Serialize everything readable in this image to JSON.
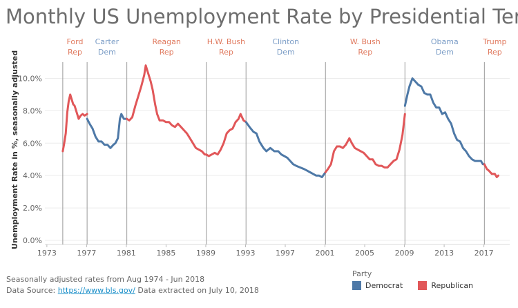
{
  "title": "Monthly US Unemployment Rate by Presidential Term",
  "footer": {
    "line1": "Seasonally adjusted rates from Aug 1974 - Jun 2018",
    "line2_prefix": "Data Source: ",
    "link": "https://www.bls.gov/",
    "line2_suffix": " Data extracted on July 10, 2018"
  },
  "legend": {
    "title": "Party",
    "items": [
      {
        "label": "Democrat",
        "color": "#4e79a7"
      },
      {
        "label": "Republican",
        "color": "#e15759"
      }
    ]
  },
  "colors": {
    "Rep": "#e15759",
    "Dem": "#4e79a7",
    "repLabel": "#e07a5f",
    "demLabel": "#7a9cc6"
  },
  "chart_data": {
    "type": "line",
    "title": "Monthly US Unemployment Rate by Presidential Term",
    "ylabel": "Unemployment Rate in %, seasonally adjusted",
    "xlabel": "",
    "xlim": [
      1972.8,
      2019.6
    ],
    "ylim": [
      0,
      11
    ],
    "yticks": [
      0,
      2,
      4,
      6,
      8,
      10
    ],
    "ytick_labels": [
      "0.0%",
      "2.0%",
      "4.0%",
      "6.0%",
      "8.0%",
      "10.0%"
    ],
    "xticks": [
      1973,
      1977,
      1981,
      1985,
      1989,
      1993,
      1997,
      2001,
      2005,
      2009,
      2013,
      2017
    ],
    "grid": true,
    "legend_position": "bottom-right",
    "terms": [
      {
        "name": "Ford",
        "party": "Rep",
        "start": 1974.6
      },
      {
        "name": "Carter",
        "party": "Dem",
        "start": 1977.05
      },
      {
        "name": "Reagan",
        "party": "Rep",
        "start": 1981.05
      },
      {
        "name": "H.W. Bush",
        "party": "Rep",
        "start": 1989.05
      },
      {
        "name": "Clinton",
        "party": "Dem",
        "start": 1993.05
      },
      {
        "name": "W. Bush",
        "party": "Rep",
        "start": 2001.05
      },
      {
        "name": "Obama",
        "party": "Dem",
        "start": 2009.05
      },
      {
        "name": "Trump",
        "party": "Rep",
        "start": 2017.05
      }
    ],
    "series": [
      {
        "name": "Ford",
        "party": "Rep",
        "points": [
          [
            1974.6,
            5.5
          ],
          [
            1974.75,
            6.0
          ],
          [
            1974.9,
            6.6
          ],
          [
            1975.05,
            7.9
          ],
          [
            1975.2,
            8.6
          ],
          [
            1975.35,
            9.0
          ],
          [
            1975.5,
            8.7
          ],
          [
            1975.65,
            8.4
          ],
          [
            1975.8,
            8.3
          ],
          [
            1976.0,
            7.9
          ],
          [
            1976.2,
            7.5
          ],
          [
            1976.4,
            7.7
          ],
          [
            1976.6,
            7.8
          ],
          [
            1976.8,
            7.7
          ],
          [
            1977.05,
            7.8
          ]
        ]
      },
      {
        "name": "Carter",
        "party": "Dem",
        "points": [
          [
            1977.05,
            7.5
          ],
          [
            1977.3,
            7.2
          ],
          [
            1977.6,
            6.9
          ],
          [
            1977.9,
            6.4
          ],
          [
            1978.2,
            6.1
          ],
          [
            1978.5,
            6.1
          ],
          [
            1978.8,
            5.9
          ],
          [
            1979.1,
            5.9
          ],
          [
            1979.4,
            5.7
          ],
          [
            1979.7,
            5.9
          ],
          [
            1979.9,
            6.0
          ],
          [
            1980.15,
            6.3
          ],
          [
            1980.35,
            7.5
          ],
          [
            1980.5,
            7.8
          ],
          [
            1980.75,
            7.5
          ],
          [
            1981.05,
            7.5
          ]
        ]
      },
      {
        "name": "Reagan",
        "party": "Rep",
        "points": [
          [
            1981.05,
            7.5
          ],
          [
            1981.3,
            7.4
          ],
          [
            1981.6,
            7.6
          ],
          [
            1981.9,
            8.3
          ],
          [
            1982.2,
            8.9
          ],
          [
            1982.5,
            9.5
          ],
          [
            1982.8,
            10.2
          ],
          [
            1982.95,
            10.8
          ],
          [
            1983.2,
            10.3
          ],
          [
            1983.45,
            9.8
          ],
          [
            1983.65,
            9.3
          ],
          [
            1983.9,
            8.4
          ],
          [
            1984.1,
            7.8
          ],
          [
            1984.35,
            7.4
          ],
          [
            1984.7,
            7.4
          ],
          [
            1985.0,
            7.3
          ],
          [
            1985.3,
            7.3
          ],
          [
            1985.6,
            7.1
          ],
          [
            1985.9,
            7.0
          ],
          [
            1986.2,
            7.2
          ],
          [
            1986.5,
            7.0
          ],
          [
            1986.8,
            6.8
          ],
          [
            1987.1,
            6.6
          ],
          [
            1987.4,
            6.3
          ],
          [
            1987.7,
            6.0
          ],
          [
            1988.0,
            5.7
          ],
          [
            1988.3,
            5.6
          ],
          [
            1988.6,
            5.5
          ],
          [
            1988.9,
            5.3
          ],
          [
            1989.05,
            5.3
          ]
        ]
      },
      {
        "name": "H.W. Bush",
        "party": "Rep",
        "points": [
          [
            1989.05,
            5.3
          ],
          [
            1989.3,
            5.2
          ],
          [
            1989.6,
            5.3
          ],
          [
            1989.9,
            5.4
          ],
          [
            1990.2,
            5.3
          ],
          [
            1990.5,
            5.6
          ],
          [
            1990.8,
            6.0
          ],
          [
            1991.1,
            6.6
          ],
          [
            1991.4,
            6.8
          ],
          [
            1991.7,
            6.9
          ],
          [
            1992.0,
            7.3
          ],
          [
            1992.3,
            7.5
          ],
          [
            1992.5,
            7.8
          ],
          [
            1992.8,
            7.4
          ],
          [
            1993.05,
            7.3
          ]
        ]
      },
      {
        "name": "Clinton",
        "party": "Dem",
        "points": [
          [
            1993.05,
            7.3
          ],
          [
            1993.4,
            7.0
          ],
          [
            1993.8,
            6.7
          ],
          [
            1994.1,
            6.6
          ],
          [
            1994.4,
            6.1
          ],
          [
            1994.8,
            5.7
          ],
          [
            1995.1,
            5.5
          ],
          [
            1995.5,
            5.7
          ],
          [
            1995.9,
            5.5
          ],
          [
            1996.3,
            5.5
          ],
          [
            1996.6,
            5.3
          ],
          [
            1996.9,
            5.2
          ],
          [
            1997.2,
            5.1
          ],
          [
            1997.5,
            4.9
          ],
          [
            1997.8,
            4.7
          ],
          [
            1998.1,
            4.6
          ],
          [
            1998.5,
            4.5
          ],
          [
            1998.9,
            4.4
          ],
          [
            1999.2,
            4.3
          ],
          [
            1999.5,
            4.2
          ],
          [
            1999.8,
            4.1
          ],
          [
            2000.1,
            4.0
          ],
          [
            2000.4,
            4.0
          ],
          [
            2000.7,
            3.9
          ],
          [
            2001.05,
            4.2
          ]
        ]
      },
      {
        "name": "W. Bush",
        "party": "Rep",
        "points": [
          [
            2001.05,
            4.2
          ],
          [
            2001.3,
            4.4
          ],
          [
            2001.6,
            4.7
          ],
          [
            2001.9,
            5.5
          ],
          [
            2002.2,
            5.8
          ],
          [
            2002.5,
            5.8
          ],
          [
            2002.8,
            5.7
          ],
          [
            2003.1,
            5.9
          ],
          [
            2003.45,
            6.3
          ],
          [
            2003.7,
            6.0
          ],
          [
            2004.0,
            5.7
          ],
          [
            2004.3,
            5.6
          ],
          [
            2004.6,
            5.5
          ],
          [
            2004.9,
            5.4
          ],
          [
            2005.2,
            5.2
          ],
          [
            2005.5,
            5.0
          ],
          [
            2005.8,
            5.0
          ],
          [
            2006.1,
            4.7
          ],
          [
            2006.4,
            4.6
          ],
          [
            2006.7,
            4.6
          ],
          [
            2007.0,
            4.5
          ],
          [
            2007.3,
            4.5
          ],
          [
            2007.6,
            4.7
          ],
          [
            2007.9,
            4.9
          ],
          [
            2008.2,
            5.0
          ],
          [
            2008.5,
            5.6
          ],
          [
            2008.8,
            6.5
          ],
          [
            2009.05,
            7.8
          ]
        ]
      },
      {
        "name": "Obama",
        "party": "Dem",
        "points": [
          [
            2009.05,
            8.3
          ],
          [
            2009.3,
            9.0
          ],
          [
            2009.5,
            9.5
          ],
          [
            2009.8,
            10.0
          ],
          [
            2010.1,
            9.8
          ],
          [
            2010.4,
            9.6
          ],
          [
            2010.7,
            9.5
          ],
          [
            2011.0,
            9.1
          ],
          [
            2011.3,
            9.0
          ],
          [
            2011.6,
            9.0
          ],
          [
            2011.9,
            8.5
          ],
          [
            2012.2,
            8.2
          ],
          [
            2012.5,
            8.2
          ],
          [
            2012.8,
            7.8
          ],
          [
            2013.1,
            7.9
          ],
          [
            2013.4,
            7.5
          ],
          [
            2013.7,
            7.2
          ],
          [
            2014.0,
            6.6
          ],
          [
            2014.3,
            6.2
          ],
          [
            2014.6,
            6.1
          ],
          [
            2014.9,
            5.7
          ],
          [
            2015.2,
            5.5
          ],
          [
            2015.5,
            5.2
          ],
          [
            2015.8,
            5.0
          ],
          [
            2016.1,
            4.9
          ],
          [
            2016.4,
            4.9
          ],
          [
            2016.7,
            4.9
          ],
          [
            2016.9,
            4.7
          ],
          [
            2017.05,
            4.7
          ]
        ]
      },
      {
        "name": "Trump",
        "party": "Rep",
        "points": [
          [
            2017.05,
            4.7
          ],
          [
            2017.3,
            4.4
          ],
          [
            2017.5,
            4.3
          ],
          [
            2017.8,
            4.1
          ],
          [
            2018.1,
            4.1
          ],
          [
            2018.3,
            3.9
          ],
          [
            2018.45,
            4.0
          ]
        ]
      }
    ]
  }
}
